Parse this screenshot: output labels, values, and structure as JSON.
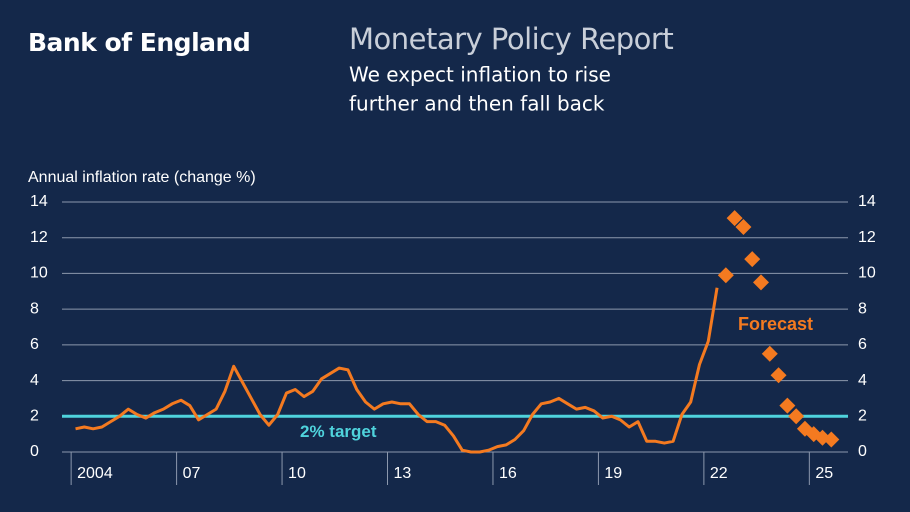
{
  "header": {
    "brand": "Bank of England",
    "title": "Monetary Policy Report",
    "subtitle": [
      "We expect inflation to rise",
      "further and then fall back"
    ]
  },
  "chart_data": {
    "type": "line",
    "y_label": "Annual inflation rate (change %)",
    "xlim": [
      2003.74,
      2026.1
    ],
    "xticks": [
      2004,
      {
        "value": 2007,
        "label": "07"
      },
      {
        "value": 2010,
        "label": "10"
      },
      {
        "value": 2013,
        "label": "13"
      },
      {
        "value": 2016,
        "label": "16"
      },
      {
        "value": 2019,
        "label": "19"
      },
      {
        "value": 2022,
        "label": "22"
      },
      {
        "value": 2025,
        "label": "25"
      }
    ],
    "ylim": [
      0,
      14
    ],
    "yticks": [
      0,
      2,
      4,
      6,
      8,
      10,
      12,
      14
    ],
    "y2lim": [
      0,
      14
    ],
    "y2ticks": [
      0,
      2,
      4,
      6,
      8,
      10,
      12,
      14
    ],
    "grid": true,
    "target": {
      "value": 2,
      "label": "2% target",
      "color": "#4fd3dc"
    },
    "series": [
      {
        "kind": "line",
        "color": "#f47a20",
        "x": [
          2004.125,
          2004.375,
          2004.625,
          2004.875,
          2005.125,
          2005.375,
          2005.625,
          2005.875,
          2006.125,
          2006.375,
          2006.625,
          2006.875,
          2007.125,
          2007.375,
          2007.625,
          2007.875,
          2008.125,
          2008.375,
          2008.625,
          2008.875,
          2009.125,
          2009.375,
          2009.625,
          2009.875,
          2010.125,
          2010.375,
          2010.625,
          2010.875,
          2011.125,
          2011.375,
          2011.625,
          2011.875,
          2012.125,
          2012.375,
          2012.625,
          2012.875,
          2013.125,
          2013.375,
          2013.625,
          2013.875,
          2014.125,
          2014.375,
          2014.625,
          2014.875,
          2015.125,
          2015.375,
          2015.625,
          2015.875,
          2016.125,
          2016.375,
          2016.625,
          2016.875,
          2017.125,
          2017.375,
          2017.625,
          2017.875,
          2018.125,
          2018.375,
          2018.625,
          2018.875,
          2019.125,
          2019.375,
          2019.625,
          2019.875,
          2020.125,
          2020.375,
          2020.625,
          2020.875,
          2021.125,
          2021.375,
          2021.625,
          2021.875,
          2022.125,
          2022.375
        ],
        "values": [
          1.3,
          1.4,
          1.3,
          1.4,
          1.7,
          2.0,
          2.4,
          2.1,
          1.9,
          2.2,
          2.4,
          2.7,
          2.9,
          2.6,
          1.8,
          2.1,
          2.4,
          3.4,
          4.8,
          3.9,
          3.0,
          2.1,
          1.5,
          2.1,
          3.3,
          3.5,
          3.1,
          3.4,
          4.1,
          4.4,
          4.7,
          4.6,
          3.5,
          2.8,
          2.4,
          2.7,
          2.8,
          2.7,
          2.7,
          2.1,
          1.7,
          1.7,
          1.5,
          0.9,
          0.1,
          0.0,
          0.0,
          0.1,
          0.3,
          0.4,
          0.7,
          1.2,
          2.1,
          2.7,
          2.8,
          3.0,
          2.7,
          2.4,
          2.5,
          2.3,
          1.9,
          2.0,
          1.8,
          1.4,
          1.7,
          0.6,
          0.6,
          0.5,
          0.6,
          2.1,
          2.8,
          4.9,
          6.2,
          9.2
        ]
      },
      {
        "kind": "markers",
        "marker": "diamond",
        "color": "#f47a20",
        "x": [
          2022.625,
          2022.875,
          2023.125,
          2023.375,
          2023.625,
          2023.875,
          2024.125,
          2024.375,
          2024.625,
          2024.875,
          2025.125,
          2025.375,
          2025.625
        ],
        "values": [
          9.9,
          13.1,
          12.6,
          10.8,
          9.5,
          5.5,
          4.3,
          2.6,
          2.0,
          1.3,
          1.0,
          0.8,
          0.7
        ]
      }
    ],
    "annotation": {
      "text": "Forecast",
      "color": "#f47a20"
    }
  }
}
